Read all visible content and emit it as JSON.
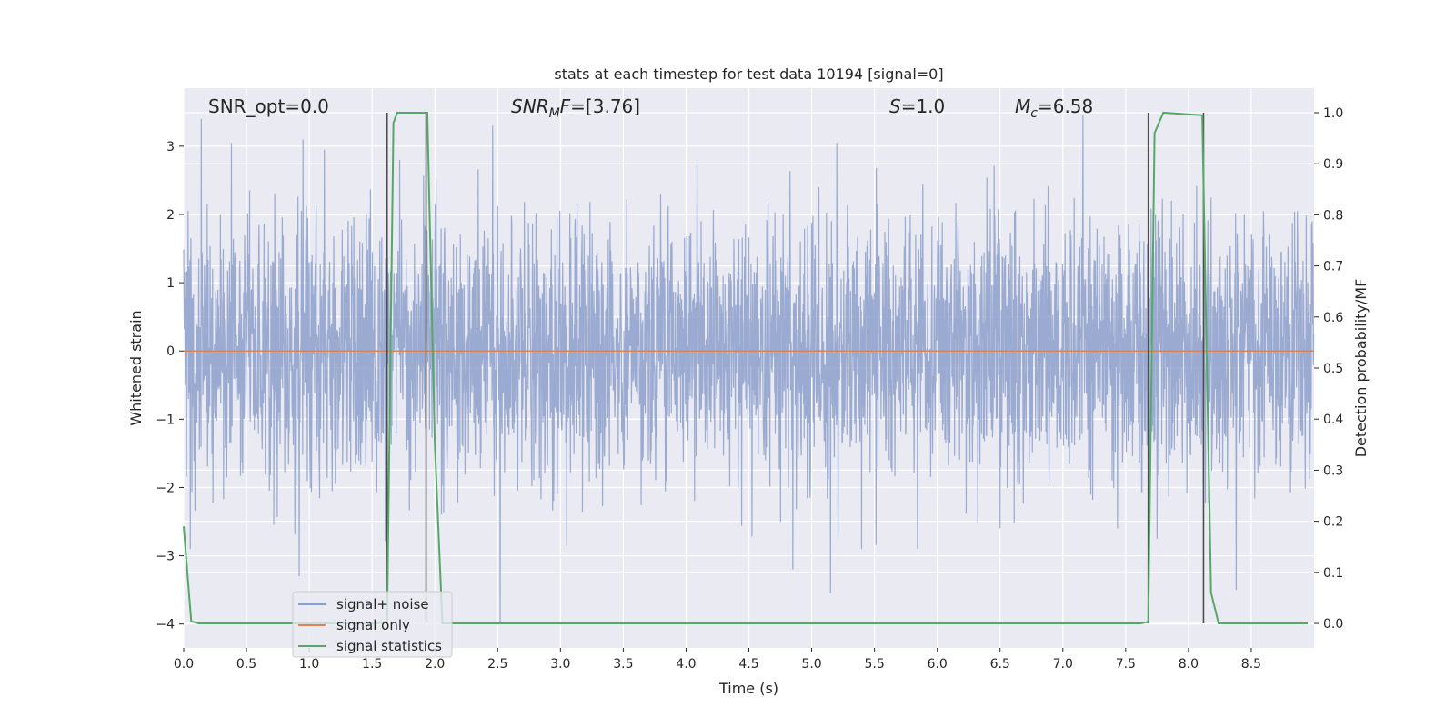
{
  "chart_data": {
    "type": "line",
    "title": "stats at each timestep for test data 10194 [signal=0]",
    "xlabel": "Time (s)",
    "ylabel": "Whitened strain",
    "ylabel_right": "Detection probability/MF",
    "xlim": [
      0.0,
      9.0
    ],
    "ylim": [
      -4.35,
      3.85
    ],
    "ylim_right": [
      -0.048,
      1.048
    ],
    "x_ticks": [
      "0.0",
      "0.5",
      "1.0",
      "1.5",
      "2.0",
      "2.5",
      "3.0",
      "3.5",
      "4.0",
      "4.5",
      "5.0",
      "5.5",
      "6.0",
      "6.5",
      "7.0",
      "7.5",
      "8.0",
      "8.5"
    ],
    "y_ticks": [
      "3",
      "2",
      "1",
      "0",
      "−1",
      "−2",
      "−3",
      "−4"
    ],
    "y_right_ticks": [
      "1.0",
      "0.9",
      "0.8",
      "0.7",
      "0.6",
      "0.5",
      "0.4",
      "0.3",
      "0.2",
      "0.1",
      "0.0"
    ],
    "grid": true,
    "legend_position": "lower-left",
    "annotations": {
      "snr_opt": "SNR_opt=0.0",
      "snr_mf": "=[3.76]",
      "snr_mf_sub": "M",
      "snr_mf_prefix": "SNR",
      "snr_mf_suffix": "F",
      "s_stat": "=1.0",
      "s_label": "S",
      "mc": "=6.58",
      "mc_label": "M",
      "mc_sub": "c"
    },
    "series": [
      {
        "name": "signal+ noise",
        "color": "#8c9fca",
        "description_type": "noise",
        "typical_range": [
          -2.0,
          2.0
        ],
        "peaks": [
          {
            "x": 0.14,
            "y": 3.4
          },
          {
            "x": 0.38,
            "y": 3.05
          },
          {
            "x": 0.95,
            "y": 3.1
          },
          {
            "x": 1.12,
            "y": 2.95
          },
          {
            "x": 1.72,
            "y": 2.8
          },
          {
            "x": 2.46,
            "y": 3.3
          },
          {
            "x": 5.2,
            "y": 3.05
          },
          {
            "x": 7.16,
            "y": 3.45
          }
        ],
        "troughs": [
          {
            "x": 0.92,
            "y": -3.3
          },
          {
            "x": 2.52,
            "y": -4.0
          },
          {
            "x": 4.85,
            "y": -3.2
          },
          {
            "x": 5.15,
            "y": -3.55
          },
          {
            "x": 6.5,
            "y": -2.6
          },
          {
            "x": 7.75,
            "y": -2.75
          },
          {
            "x": 8.38,
            "y": -3.5
          }
        ]
      },
      {
        "name": "signal only",
        "color": "#dd8452",
        "x": [
          0.0,
          9.0
        ],
        "y": [
          0.0,
          0.0
        ]
      },
      {
        "name": "signal statistics",
        "color": "#55a868",
        "axis": "right",
        "x": [
          0.0,
          0.06,
          0.12,
          0.2,
          1.55,
          1.62,
          1.67,
          1.7,
          1.94,
          2.0,
          2.06,
          2.3,
          7.62,
          7.68,
          7.73,
          7.8,
          8.11,
          8.18,
          8.24,
          8.3,
          8.95
        ],
        "y": [
          0.19,
          0.004,
          0.0,
          0.0,
          0.0,
          0.005,
          0.98,
          1.0,
          1.0,
          0.35,
          0.0,
          0.0,
          0.0,
          0.003,
          0.96,
          1.0,
          0.995,
          0.06,
          0.0,
          0.0,
          0.0
        ]
      }
    ],
    "vlines": [
      {
        "x": 1.62,
        "color": "#4d4d4d"
      },
      {
        "x": 1.93,
        "color": "#4d4d4d"
      },
      {
        "x": 7.68,
        "color": "#4d4d4d"
      },
      {
        "x": 8.12,
        "color": "#4d4d4d"
      }
    ]
  }
}
